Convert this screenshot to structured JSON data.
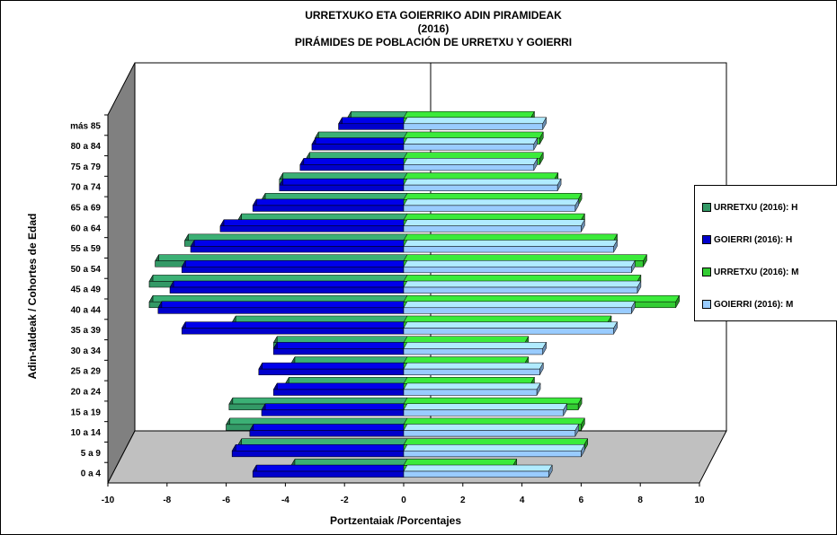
{
  "chart_data": {
    "type": "bar",
    "title": [
      "URRETXUKO ETA  GOIERRIKO  ADIN PIRAMIDEAK",
      "(2016)",
      "PIRÁMIDES DE POBLACIÓN DE URRETXU Y  GOIERRI"
    ],
    "xlabel": "Portzentaiak /Porcentajes",
    "ylabel": "Adin-taldeak / Cohortes de Edad",
    "xlim": [
      -10,
      10
    ],
    "xticks": [
      "-10",
      "-8",
      "-6",
      "-4",
      "-2",
      "0",
      "2",
      "4",
      "6",
      "8",
      "10"
    ],
    "categories": [
      "0 a 4",
      "5 a 9",
      "10 a 14",
      "15 a 19",
      "20 a 24",
      "25 a 29",
      "30 a 34",
      "35 a 39",
      "40 a 44",
      "45 a 49",
      "50 a 54",
      "55 a 59",
      "60 a 64",
      "65 a 69",
      "70 a 74",
      "75 a 79",
      "80 a 84",
      "más 85"
    ],
    "series": [
      {
        "name": "URRETXU (2016): H",
        "color": "#339966",
        "values": [
          -3.8,
          -5.6,
          -6.0,
          -5.9,
          -4.0,
          -3.8,
          -4.4,
          -5.8,
          -8.6,
          -8.6,
          -8.4,
          -7.4,
          -5.6,
          -4.8,
          -4.2,
          -3.3,
          -3.0,
          -1.9
        ]
      },
      {
        "name": "GOIERRI (2016): H",
        "color": "#0000CC",
        "values": [
          -5.1,
          -5.8,
          -5.2,
          -4.8,
          -4.4,
          -4.9,
          -4.4,
          -7.5,
          -8.3,
          -7.9,
          -7.5,
          -7.2,
          -6.2,
          -5.1,
          -4.2,
          -3.5,
          -3.1,
          -2.2
        ]
      },
      {
        "name": "URRETXU (2016): M",
        "color": "#33CC33",
        "values": [
          3.7,
          6.1,
          6.0,
          5.9,
          4.3,
          4.1,
          4.1,
          6.9,
          9.2,
          7.9,
          8.1,
          7.1,
          6.0,
          5.9,
          5.1,
          4.6,
          4.6,
          4.3
        ]
      },
      {
        "name": "GOIERRI (2016): M",
        "color": "#99CCFF",
        "values": [
          4.9,
          6.0,
          5.8,
          5.4,
          4.5,
          4.6,
          4.7,
          7.1,
          7.7,
          7.9,
          7.7,
          7.1,
          6.0,
          5.8,
          5.2,
          4.4,
          4.4,
          4.7
        ]
      }
    ]
  }
}
